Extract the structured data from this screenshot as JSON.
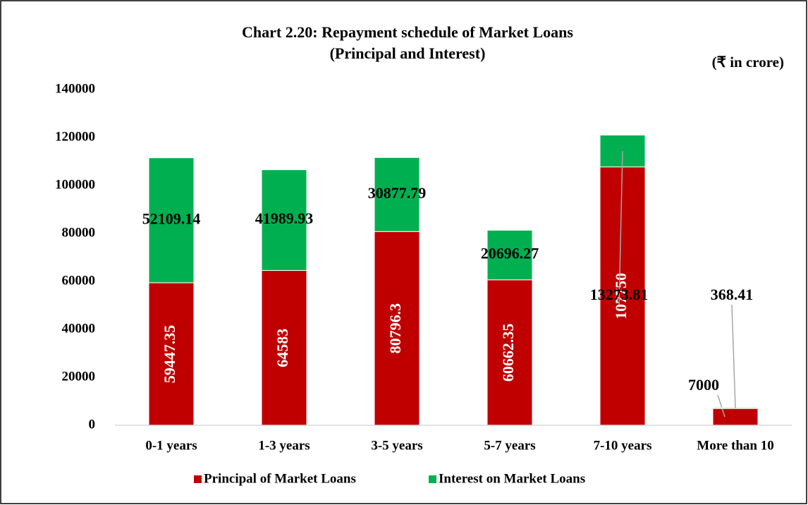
{
  "chart_data": {
    "type": "stacked_bar",
    "title": "Chart 2.20: Repayment schedule of Market Loans",
    "subtitle": "(Principal and Interest)",
    "unit_label": "(₹ in crore)",
    "categories": [
      "0-1 years",
      "1-3 years",
      "3-5 years",
      "5-7 years",
      "7-10 years",
      "More than 10"
    ],
    "series": [
      {
        "name": "Principal of Market Loans",
        "color": "#c00000",
        "values": [
          59447.35,
          64583,
          80796.3,
          60662.35,
          107750,
          7000
        ]
      },
      {
        "name": "Interest on Market Loans",
        "color": "#00b050",
        "values": [
          52109.14,
          41989.93,
          30877.79,
          20696.27,
          13273.81,
          368.41
        ]
      }
    ],
    "ylim": [
      0,
      140000
    ],
    "yticks": [
      0,
      20000,
      40000,
      60000,
      80000,
      100000,
      120000,
      140000
    ],
    "grid": false,
    "legend": "bottom"
  }
}
